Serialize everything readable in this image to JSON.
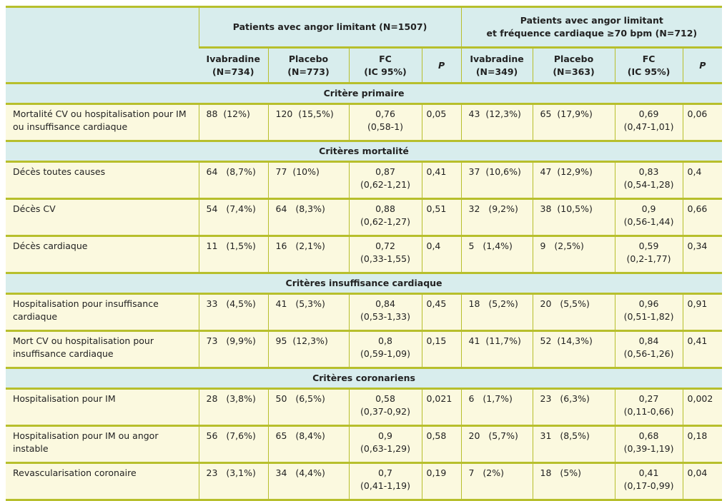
{
  "table": {
    "group_headers": [
      "Patients avec angor limitant (N=1507)",
      "Patients avec angor limitant\net fréquence cardiaque ≥70 bpm (N=712)"
    ],
    "column_headers": [
      "Ivabradine\n(N=734)",
      "Placebo\n(N=773)",
      "FC\n(IC 95%)",
      "P",
      "Ivabradine\n(N=349)",
      "Placebo\n(N=363)",
      "FC\n(IC 95%)",
      "P"
    ],
    "sections": [
      {
        "title": "Critère primaire",
        "rows": [
          {
            "label": "Mortalité CV ou hospitalisation pour IM ou insuffisance cardiaque",
            "cells": [
              "88  (12%)",
              "120  (15,5%)",
              "0,76\n(0,58-1)",
              "0,05",
              "43  (12,3%)",
              "65  (17,9%)",
              "0,69\n(0,47-1,01)",
              "0,06"
            ]
          }
        ]
      },
      {
        "title": "Critères mortalité",
        "rows": [
          {
            "label": "Décès toutes causes",
            "cells": [
              "64   (8,7%)",
              "77  (10%)",
              "0,87\n(0,62-1,21)",
              "0,41",
              "37  (10,6%)",
              "47  (12,9%)",
              "0,83\n(0,54-1,28)",
              "0,4"
            ]
          },
          {
            "label": "Décès CV",
            "cells": [
              "54   (7,4%)",
              "64   (8,3%)",
              "0,88\n(0,62-1,27)",
              "0,51",
              "32   (9,2%)",
              "38  (10,5%)",
              "0,9\n(0,56-1,44)",
              "0,66"
            ]
          },
          {
            "label": "Décès cardiaque",
            "cells": [
              "11   (1,5%)",
              "16   (2,1%)",
              "0,72\n(0,33-1,55)",
              "0,4",
              "5   (1,4%)",
              "9   (2,5%)",
              "0,59\n(0,2-1,77)",
              "0,34"
            ]
          }
        ]
      },
      {
        "title": "Critères insuffisance cardiaque",
        "rows": [
          {
            "label": "Hospitalisation pour insuffisance cardiaque",
            "cells": [
              "33   (4,5%)",
              "41   (5,3%)",
              "0,84\n(0,53-1,33)",
              "0,45",
              "18   (5,2%)",
              "20   (5,5%)",
              "0,96\n(0,51-1,82)",
              "0,91"
            ]
          },
          {
            "label": "Mort CV ou hospitalisation pour insuffisance cardiaque",
            "cells": [
              "73   (9,9%)",
              "95  (12,3%)",
              "0,8\n(0,59-1,09)",
              "0,15",
              "41  (11,7%)",
              "52  (14,3%)",
              "0,84\n(0,56-1,26)",
              "0,41"
            ]
          }
        ]
      },
      {
        "title": "Critères coronariens",
        "rows": [
          {
            "label": "Hospitalisation pour IM",
            "cells": [
              "28   (3,8%)",
              "50   (6,5%)",
              "0,58\n(0,37-0,92)",
              "0,021",
              "6   (1,7%)",
              "23   (6,3%)",
              "0,27\n(0,11-0,66)",
              "0,002"
            ]
          },
          {
            "label": "Hospitalisation pour IM ou angor instable",
            "cells": [
              "56   (7,6%)",
              "65   (8,4%)",
              "0,9\n(0,63-1,29)",
              "0,58",
              "20   (5,7%)",
              "31   (8,5%)",
              "0,68\n(0,39-1,19)",
              "0,18"
            ]
          },
          {
            "label": "Revascularisation coronaire",
            "cells": [
              "23   (3,1%)",
              "34   (4,4%)",
              "0,7\n(0,41-1,19)",
              "0,19",
              "7   (2%)",
              "18   (5%)",
              "0,41\n(0,17-0,99)",
              "0,04"
            ]
          }
        ]
      }
    ]
  }
}
